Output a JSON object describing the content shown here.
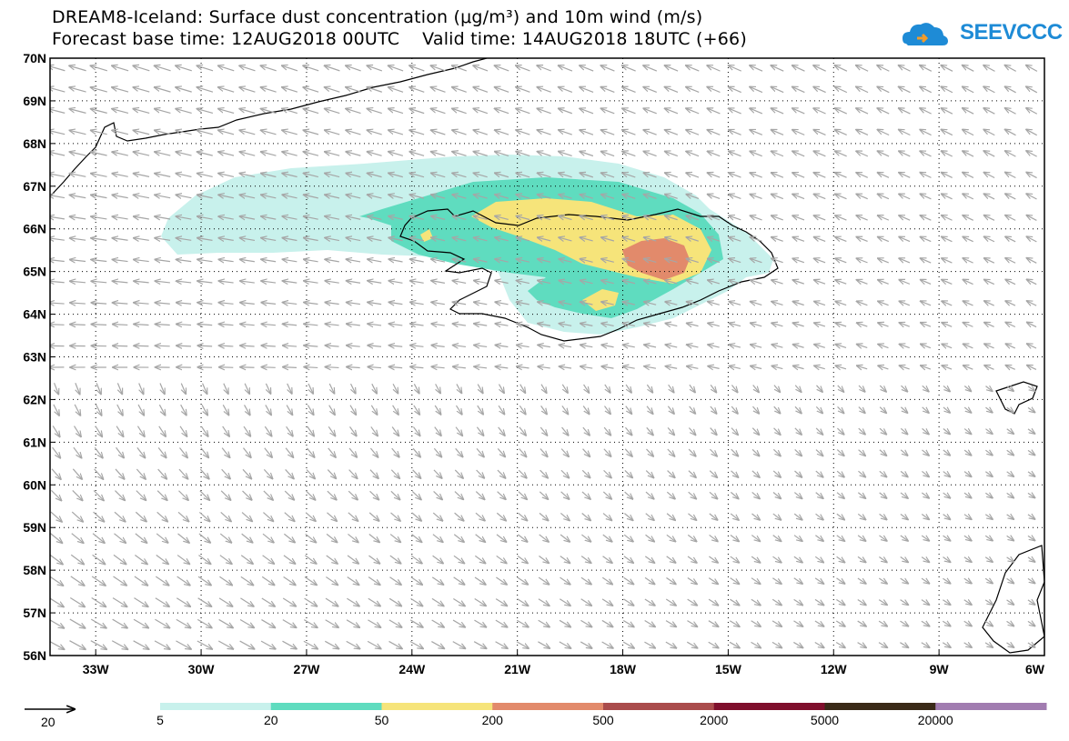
{
  "title_line1": "DREAM8-Iceland: Surface dust concentration (μg/m³) and 10m wind (m/s)",
  "title_line2": "Forecast base time: 12AUG2018 00UTC    Valid time: 14AUG2018 18UTC (+66)",
  "logo_text": "SEEVCCC",
  "map": {
    "lon_range": [
      -34.3,
      -6
    ],
    "lat_range": [
      56,
      70
    ],
    "lon_ticks": [
      "33W",
      "30W",
      "27W",
      "24W",
      "21W",
      "18W",
      "15W",
      "12W",
      "9W",
      "6W"
    ],
    "lon_values": [
      -33,
      -30,
      -27,
      -24,
      -21,
      -18,
      -15,
      -12,
      -9,
      -6
    ],
    "lat_ticks": [
      "56N",
      "57N",
      "58N",
      "59N",
      "60N",
      "61N",
      "62N",
      "63N",
      "64N",
      "65N",
      "66N",
      "67N",
      "68N",
      "69N",
      "70N"
    ],
    "lat_values": [
      56,
      57,
      58,
      59,
      60,
      61,
      62,
      63,
      64,
      65,
      66,
      67,
      68,
      69,
      70
    ],
    "grid": "dotted",
    "vector_color": "#a6a6a6"
  },
  "wind_reference": {
    "value": "20"
  },
  "legend": {
    "colors": [
      "#c8f1ec",
      "#5fdcbf",
      "#f6e47a",
      "#e28a6b",
      "#aa4c4c",
      "#7f0f2c",
      "#3a2a18",
      "#a17cb0"
    ],
    "labels": [
      "5",
      "20",
      "50",
      "200",
      "500",
      "2000",
      "5000",
      "20000"
    ]
  }
}
